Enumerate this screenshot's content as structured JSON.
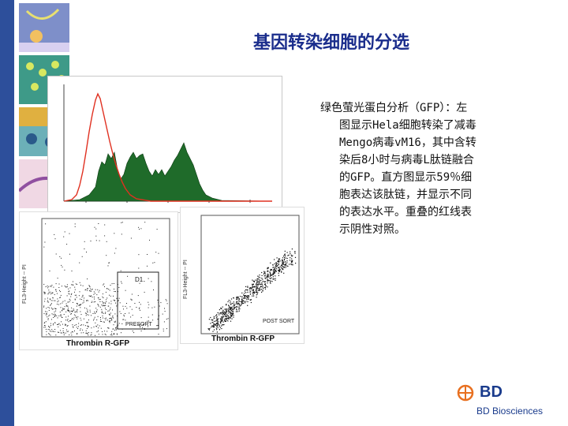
{
  "title": "基因转染细胞的分选",
  "caption": {
    "first_line": "绿色萤光蛋白分析（GFP）：左",
    "lines": [
      "图显示Hela细胞转染了减毒",
      "Mengo病毒vM16，其中含转",
      "染后8小时与病毒L肽链融合",
      "的GFP。直方图显示59％细",
      "胞表达该肽链，并显示不同",
      "的表达水平。重叠的红线表",
      "示阴性对照。"
    ]
  },
  "plots": {
    "left_gate_label": "D1",
    "left_region_label": "PRESORT",
    "right_region_label": "POST SORT",
    "left_ylabel": "FL3-Height -- PI",
    "right_ylabel": "FL3-Height -- PI",
    "left_xlabel": "Thrombin R-GFP",
    "right_xlabel": "Thrombin R-GFP"
  },
  "logo": {
    "name": "BD",
    "subtitle": "BD Biosciences",
    "color": "#1a3b8c"
  },
  "colors": {
    "sidebar": "#2d4f9b",
    "title": "#1a2d8c",
    "histogram_fill": "#1f6b2a",
    "control_line": "#e03020"
  }
}
